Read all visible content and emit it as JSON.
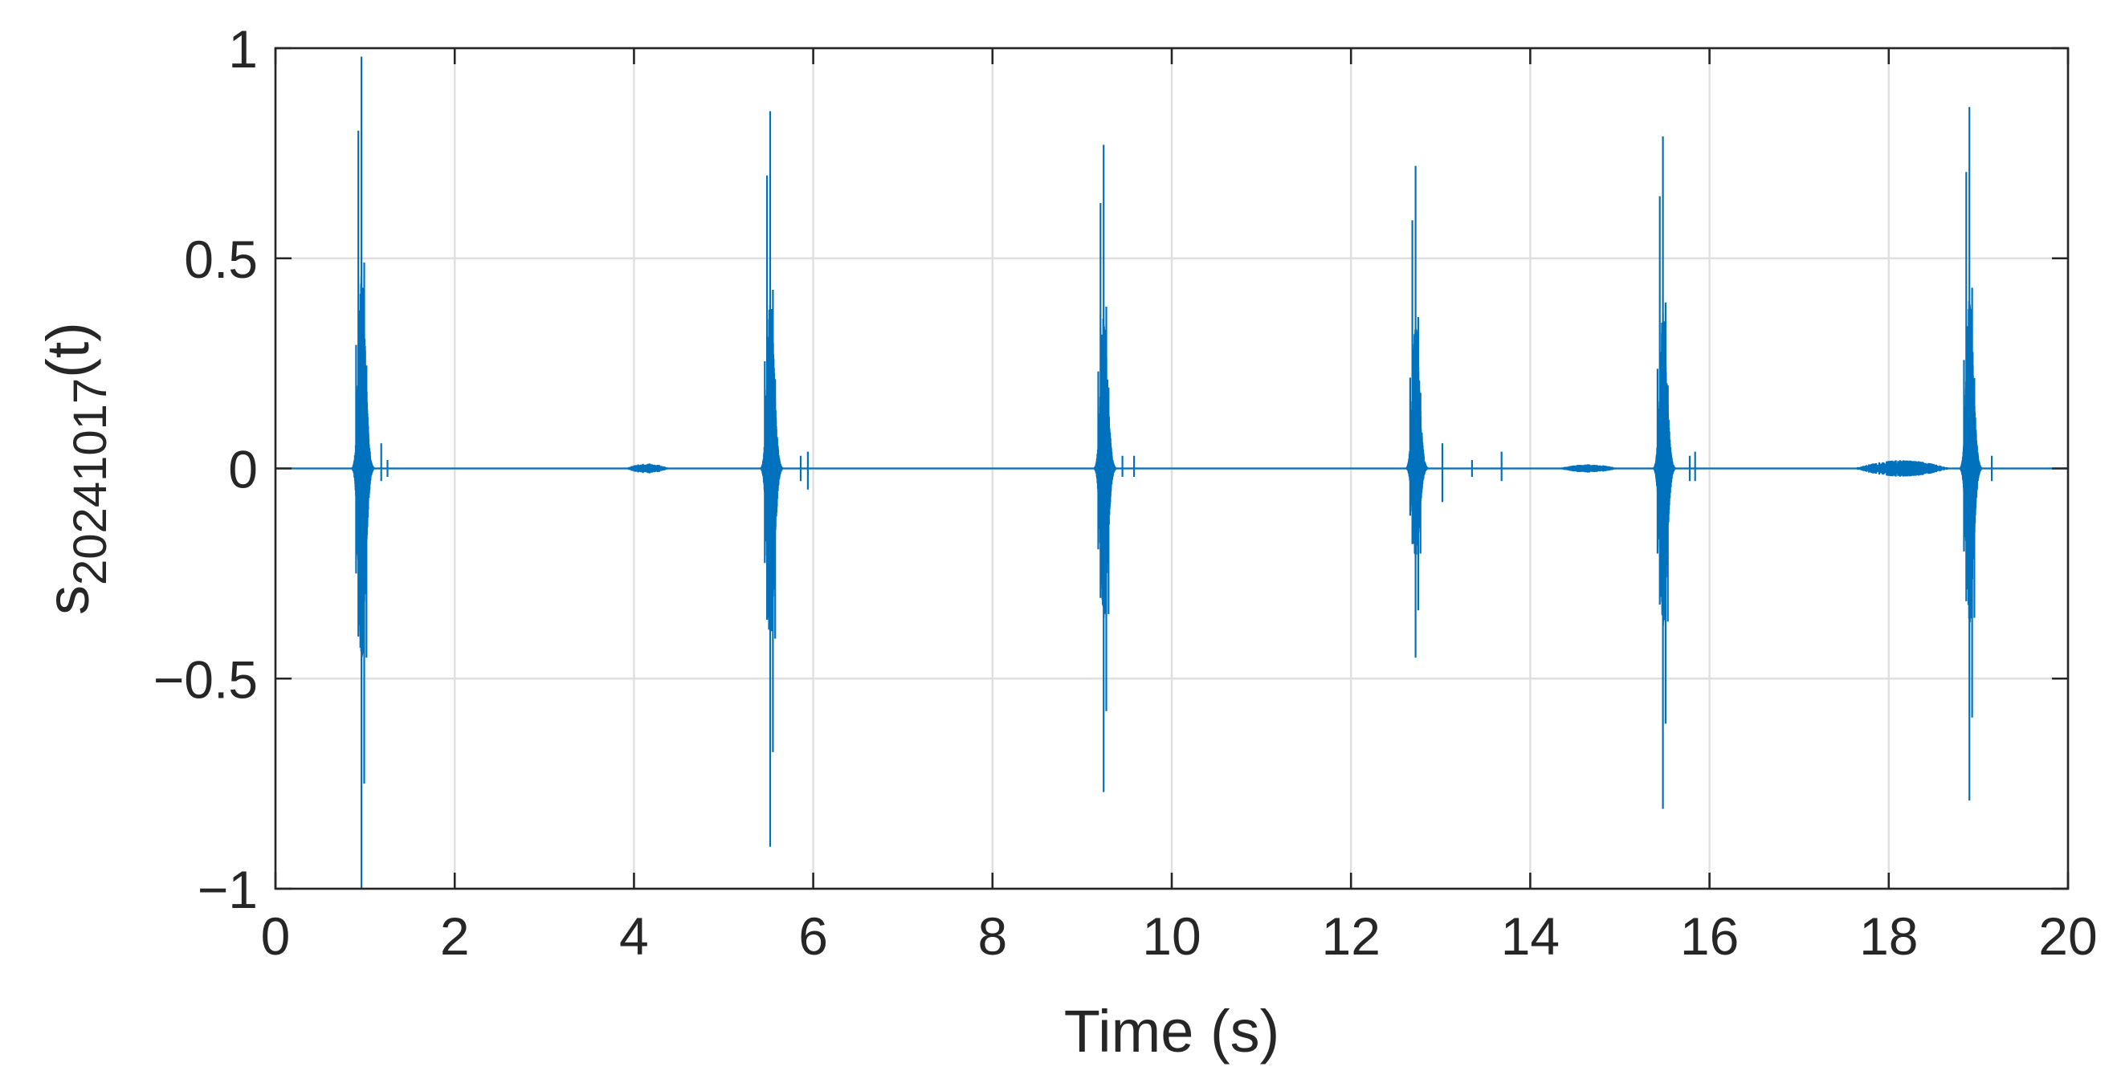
{
  "chart_data": {
    "type": "line",
    "title": "",
    "xlabel": "Time (s)",
    "ylabel_main": "s",
    "ylabel_sub": "20241017",
    "ylabel_suffix": "(t)",
    "xlim": [
      0,
      20
    ],
    "ylim": [
      -1,
      1
    ],
    "xticks": [
      0,
      2,
      4,
      6,
      8,
      10,
      12,
      14,
      16,
      18,
      20
    ],
    "xtick_labels": [
      "0",
      "2",
      "4",
      "6",
      "8",
      "10",
      "12",
      "14",
      "16",
      "18",
      "20"
    ],
    "yticks": [
      -1,
      -0.5,
      0,
      0.5,
      1
    ],
    "ytick_labels": [
      "−1",
      "−0.5",
      "0",
      "0.5",
      "1"
    ],
    "grid": true,
    "legend": "none",
    "line_color": "#0072bd",
    "series": [
      {
        "bursts": [
          {
            "t": 0.96,
            "max": 0.98,
            "min": -1.0
          },
          {
            "t": 5.52,
            "max": 0.85,
            "min": -0.9
          },
          {
            "t": 9.24,
            "max": 0.77,
            "min": -0.77
          },
          {
            "t": 12.72,
            "max": 0.72,
            "min": -0.45
          },
          {
            "t": 15.48,
            "max": 0.79,
            "min": -0.81
          },
          {
            "t": 18.9,
            "max": 0.86,
            "min": -0.79
          }
        ],
        "small_spikes": [
          {
            "t": 1.18,
            "max": 0.06,
            "min": -0.03
          },
          {
            "t": 1.25,
            "max": 0.02,
            "min": -0.02
          },
          {
            "t": 5.86,
            "max": 0.03,
            "min": -0.03
          },
          {
            "t": 5.94,
            "max": 0.04,
            "min": -0.05
          },
          {
            "t": 9.45,
            "max": 0.03,
            "min": -0.02
          },
          {
            "t": 9.58,
            "max": 0.03,
            "min": -0.02
          },
          {
            "t": 13.02,
            "max": 0.06,
            "min": -0.08
          },
          {
            "t": 13.35,
            "max": 0.02,
            "min": -0.02
          },
          {
            "t": 13.68,
            "max": 0.04,
            "min": -0.03
          },
          {
            "t": 15.78,
            "max": 0.03,
            "min": -0.03
          },
          {
            "t": 15.84,
            "max": 0.04,
            "min": -0.03
          },
          {
            "t": 19.15,
            "max": 0.03,
            "min": -0.03
          }
        ],
        "low_level_segments": [
          {
            "start": 3.9,
            "end": 4.4,
            "amp": 0.012
          },
          {
            "start": 14.3,
            "end": 15.0,
            "amp": 0.01
          },
          {
            "start": 17.6,
            "end": 18.7,
            "amp": 0.02
          }
        ]
      }
    ]
  }
}
